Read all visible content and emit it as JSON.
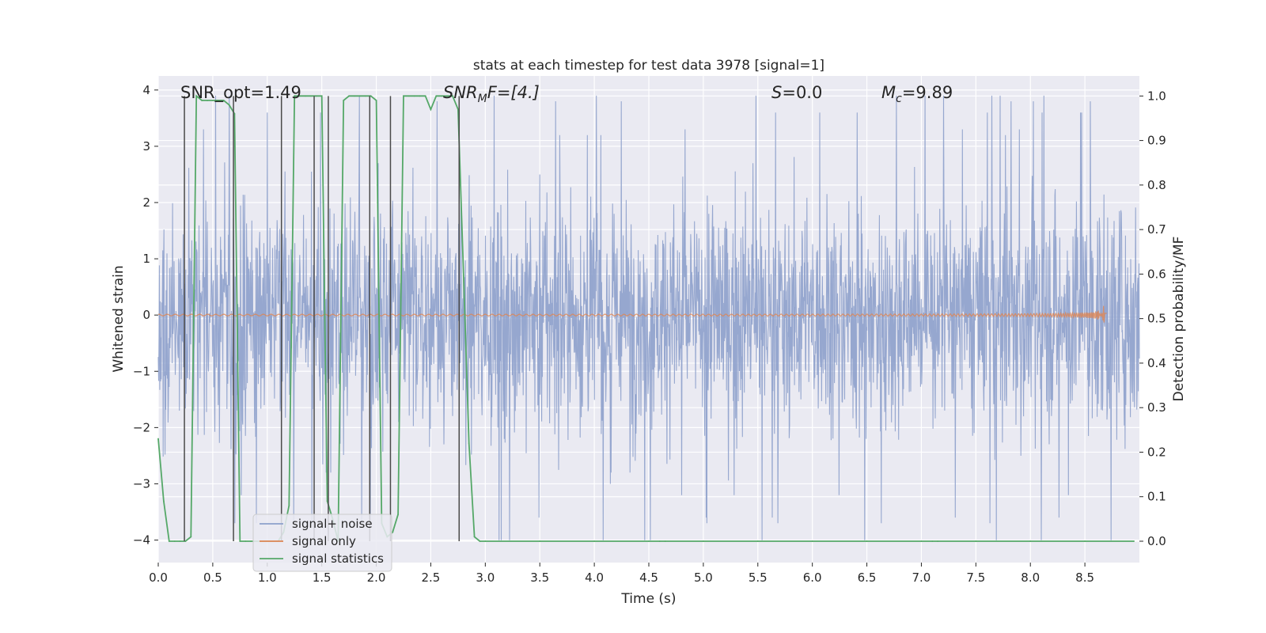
{
  "chart_data": {
    "type": "line",
    "title": "stats at each timestep for test data 3978 [signal=1]",
    "xlabel": "Time (s)",
    "ylabel_left": "Whitened strain",
    "ylabel_right": "Detection probability/MF",
    "xlim": [
      0.0,
      9.0
    ],
    "ylim_left": [
      -4.4,
      4.25
    ],
    "ylim_right": [
      -0.048,
      1.045
    ],
    "x_ticks": [
      0.0,
      0.5,
      1.0,
      1.5,
      2.0,
      2.5,
      3.0,
      3.5,
      4.0,
      4.5,
      5.0,
      5.5,
      6.0,
      6.5,
      7.0,
      7.5,
      8.0,
      8.5
    ],
    "x_tick_labels": [
      "0.0",
      "0.5",
      "1.0",
      "1.5",
      "2.0",
      "2.5",
      "3.0",
      "3.5",
      "4.0",
      "4.5",
      "5.0",
      "5.5",
      "6.0",
      "6.5",
      "7.0",
      "7.5",
      "8.0",
      "8.5"
    ],
    "y_left_ticks": [
      -4,
      -3,
      -2,
      -1,
      0,
      1,
      2,
      3,
      4
    ],
    "y_left_tick_labels": [
      "−4",
      "−3",
      "−2",
      "−1",
      "0",
      "1",
      "2",
      "3",
      "4"
    ],
    "y_right_ticks": [
      0.0,
      0.1,
      0.2,
      0.3,
      0.4,
      0.5,
      0.6,
      0.7,
      0.8,
      0.9,
      1.0
    ],
    "y_right_tick_labels": [
      "0.0",
      "0.1",
      "0.2",
      "0.3",
      "0.4",
      "0.5",
      "0.6",
      "0.7",
      "0.8",
      "0.9",
      "1.0"
    ],
    "annotations": {
      "snr_opt": "SNR_opt=1.49",
      "snr_mf_prefix": "SNR",
      "snr_mf_sub": "M",
      "snr_mf_suffix": "F=[4.]",
      "s_stat_prefix": "S",
      "s_stat_suffix": "=0.0",
      "mc_prefix": "M",
      "mc_sub": "c",
      "mc_suffix": "=9.89"
    },
    "legend": {
      "location": "lower-left",
      "entries": [
        "signal+ noise",
        "signal only",
        "signal statistics"
      ]
    },
    "colors": {
      "signal_noise": "#8da0cb",
      "signal_only": "#dd8452",
      "statistics": "#55a868",
      "event_lines": "#4a4a4a",
      "background": "#eaeaf2",
      "grid": "#ffffff"
    },
    "series": [
      {
        "name": "signal statistics",
        "axis": "right",
        "x": [
          0.0,
          0.05,
          0.1,
          0.15,
          0.2,
          0.25,
          0.3,
          0.35,
          0.4,
          0.45,
          0.5,
          0.55,
          0.6,
          0.65,
          0.7,
          0.75,
          0.8,
          0.85,
          0.9,
          0.95,
          1.0,
          1.05,
          1.1,
          1.15,
          1.2,
          1.25,
          1.3,
          1.35,
          1.4,
          1.45,
          1.5,
          1.55,
          1.6,
          1.65,
          1.7,
          1.75,
          1.8,
          1.85,
          1.9,
          1.95,
          2.0,
          2.05,
          2.1,
          2.15,
          2.2,
          2.25,
          2.3,
          2.35,
          2.4,
          2.45,
          2.5,
          2.55,
          2.6,
          2.65,
          2.7,
          2.75,
          2.8,
          2.85,
          2.9,
          2.95,
          3.0,
          3.5,
          4.0,
          4.5,
          4.6,
          4.65,
          5.0,
          5.5,
          6.0,
          6.5,
          7.0,
          7.1,
          7.15,
          7.5,
          8.0,
          8.5,
          8.95
        ],
        "y": [
          0.23,
          0.09,
          0.0,
          0.0,
          0.0,
          0.0,
          0.01,
          1.0,
          0.99,
          0.99,
          0.99,
          0.99,
          0.99,
          0.98,
          0.96,
          0.0,
          0.0,
          0.0,
          0.0,
          0.0,
          0.0,
          0.0,
          0.0,
          0.02,
          0.08,
          1.0,
          1.0,
          1.0,
          1.0,
          1.0,
          1.0,
          0.09,
          0.05,
          0.0,
          0.99,
          1.0,
          1.0,
          1.0,
          1.0,
          1.0,
          0.99,
          0.04,
          0.01,
          0.02,
          0.06,
          1.0,
          1.0,
          1.0,
          1.0,
          1.0,
          0.97,
          1.0,
          1.0,
          1.0,
          1.0,
          0.97,
          0.6,
          0.22,
          0.01,
          0.0,
          0.0,
          0.0,
          0.0,
          0.0,
          0.0,
          0.0,
          0.0,
          0.0,
          0.0,
          0.0,
          0.0,
          0.0,
          0.0,
          0.0,
          0.0,
          0.0,
          0.0
        ]
      },
      {
        "name": "signal+ noise",
        "axis": "left",
        "x_range": [
          0.0,
          9.0
        ],
        "typical_amplitude": 1.3,
        "peak_values": [
          2.7,
          -2.8,
          3.6,
          -3.0,
          3.2,
          -3.6,
          3.9,
          -3.7,
          3.8,
          -4.0,
          3.9,
          -4.0,
          3.3,
          -3.2
        ]
      },
      {
        "name": "signal only",
        "axis": "left",
        "x_range": [
          0.0,
          8.7
        ],
        "description_of_shape": "chirp",
        "final_amplitude": 0.2,
        "merger_time": 8.68
      }
    ],
    "event_lines_x": [
      0.24,
      0.69,
      1.13,
      1.43,
      1.56,
      1.94,
      2.13,
      2.76
    ]
  }
}
